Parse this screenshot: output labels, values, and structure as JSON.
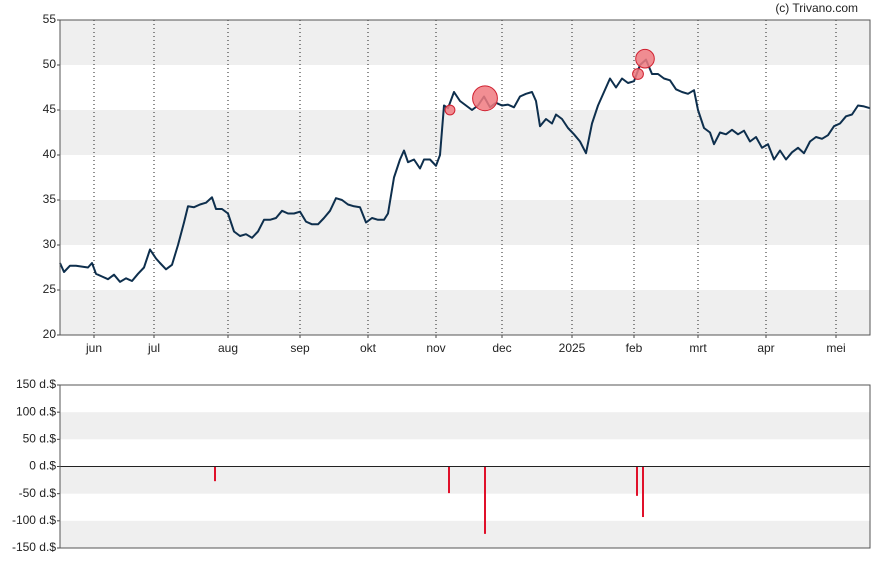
{
  "watermark": "(c) Trivano.com",
  "chart_data": [
    {
      "type": "line",
      "xlim": [
        0,
        405
      ],
      "xticks": [
        {
          "value": 17,
          "label": "jun"
        },
        {
          "value": 47,
          "label": "jul"
        },
        {
          "value": 84,
          "label": "aug"
        },
        {
          "value": 120,
          "label": "sep"
        },
        {
          "value": 154,
          "label": "okt"
        },
        {
          "value": 188,
          "label": "nov"
        },
        {
          "value": 221,
          "label": "dec"
        },
        {
          "value": 256,
          "label": "2025"
        },
        {
          "value": 287,
          "label": "feb"
        },
        {
          "value": 319,
          "label": "mrt"
        },
        {
          "value": 353,
          "label": "apr"
        },
        {
          "value": 388,
          "label": "mei"
        }
      ],
      "ylim": [
        20,
        55
      ],
      "yticks": [
        20,
        25,
        30,
        35,
        40,
        45,
        50,
        55
      ],
      "grid": true,
      "series": [
        {
          "color": "#0e2f4d",
          "x": [
            0,
            2,
            5,
            8,
            11,
            14,
            16,
            18,
            21,
            24,
            27,
            30,
            33,
            36,
            39,
            42,
            45,
            48,
            50,
            53,
            56,
            59,
            62,
            64,
            67,
            70,
            73,
            76,
            78,
            81,
            84,
            87,
            90,
            93,
            96,
            99,
            102,
            105,
            108,
            111,
            114,
            117,
            120,
            123,
            126,
            129,
            132,
            135,
            138,
            141,
            144,
            147,
            150,
            153,
            156,
            159,
            162,
            164,
            167,
            170,
            172,
            174,
            177,
            180,
            182,
            185,
            188,
            190,
            192,
            194,
            197,
            200,
            203,
            206,
            209,
            212,
            215,
            218,
            221,
            224,
            227,
            230,
            233,
            236,
            238,
            240,
            243,
            246,
            248,
            251,
            254,
            257,
            260,
            263,
            266,
            269,
            272,
            275,
            278,
            281,
            284,
            287,
            290,
            293,
            296,
            299,
            302,
            305,
            308,
            311,
            314,
            317,
            319,
            322,
            325,
            327,
            330,
            333,
            336,
            339,
            342,
            345,
            348,
            351,
            354,
            357,
            360,
            363,
            366,
            369,
            372,
            375,
            378,
            381,
            384,
            387,
            390,
            393,
            396,
            399,
            402,
            405
          ],
          "values": [
            28,
            27,
            27.7,
            27.7,
            27.6,
            27.5,
            28,
            26.8,
            26.5,
            26.2,
            26.7,
            25.9,
            26.3,
            26,
            26.8,
            27.5,
            29.5,
            28.5,
            28,
            27.3,
            27.8,
            30,
            32.5,
            34.3,
            34.2,
            34.5,
            34.7,
            35.3,
            34,
            34,
            33.5,
            31.5,
            31,
            31.2,
            30.8,
            31.5,
            32.8,
            32.8,
            33,
            33.8,
            33.5,
            33.5,
            33.7,
            32.6,
            32.3,
            32.3,
            33,
            33.8,
            35.2,
            35,
            34.5,
            34.3,
            34.2,
            32.5,
            33,
            32.8,
            32.8,
            33.5,
            37.5,
            39.5,
            40.5,
            39.2,
            39.5,
            38.5,
            39.5,
            39.5,
            38.8,
            40,
            45.5,
            45.2,
            47,
            46,
            45.5,
            45,
            45.5,
            46.5,
            45.3,
            45.8,
            45.5,
            45.6,
            45.3,
            46.5,
            46.8,
            47,
            46,
            43.2,
            44,
            43.5,
            44.5,
            44,
            43,
            42.3,
            41.5,
            40.2,
            43.5,
            45.5,
            47,
            48.5,
            47.5,
            48.5,
            48,
            48.2,
            50,
            50.6,
            49,
            49,
            48.5,
            48.3,
            47.3,
            47,
            46.8,
            47.2,
            45,
            43,
            42.5,
            41.2,
            42.5,
            42.3,
            42.8,
            42.3,
            42.7,
            41.5,
            42,
            40.8,
            41.2,
            39.5,
            40.5,
            39.5,
            40.3,
            40.8,
            40.2,
            41.5,
            42,
            41.8,
            42.2,
            43.2,
            43.5,
            44.3,
            44.5,
            45.5,
            45.4,
            45.2
          ]
        }
      ],
      "markers": {
        "color": "#f07a80",
        "x": [
          195,
          212.5,
          289,
          292.5
        ],
        "values": [
          45,
          46.3,
          49,
          50.7
        ],
        "size": [
          49,
          124,
          54,
          93
        ]
      }
    },
    {
      "type": "bar",
      "xlim": [
        0,
        405
      ],
      "ylim": [
        -150,
        150
      ],
      "yticks": [
        {
          "value": -150,
          "label": "-150 d.$"
        },
        {
          "value": -100,
          "label": "-100 d.$"
        },
        {
          "value": -50,
          "label": "-50 d.$"
        },
        {
          "value": 0,
          "label": "0 d.$"
        },
        {
          "value": 50,
          "label": "50 d.$"
        },
        {
          "value": 100,
          "label": "100 d.$"
        },
        {
          "value": 150,
          "label": "150 d.$"
        }
      ],
      "color": "#e0102a",
      "x": [
        77.5,
        194.5,
        212.5,
        288.5,
        291.5
      ],
      "values": [
        -27,
        -49,
        -124,
        -54,
        -93
      ]
    }
  ]
}
